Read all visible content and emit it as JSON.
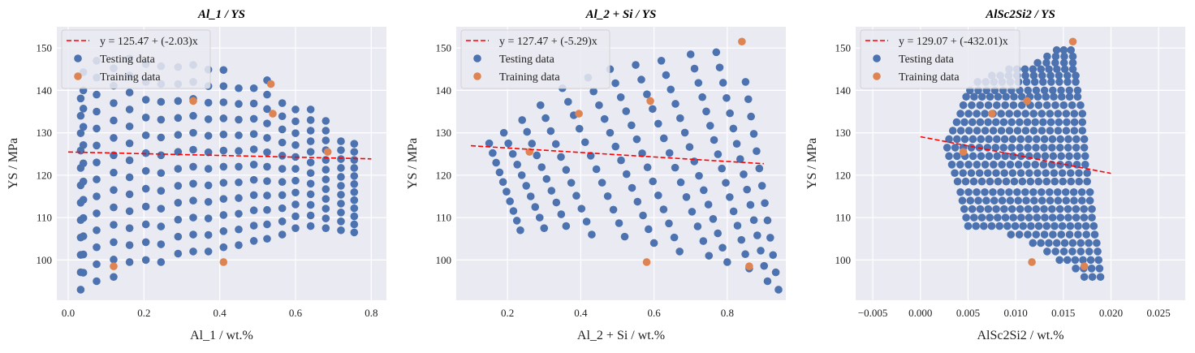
{
  "chart_data": [
    {
      "type": "scatter",
      "title": "Al_1 / YS",
      "xlabel": "Al_1 / wt.%",
      "ylabel": "YS / MPa",
      "xlim": [
        -0.03,
        0.84
      ],
      "ylim": [
        90.5,
        155
      ],
      "xticks": [
        "0.0",
        "0.2",
        "0.4",
        "0.6",
        "0.8"
      ],
      "xtick_values": [
        0,
        0.2,
        0.4,
        0.6,
        0.8
      ],
      "yticks": [
        "100",
        "110",
        "120",
        "130",
        "140",
        "150"
      ],
      "ytick_values": [
        100,
        110,
        120,
        130,
        140,
        150
      ],
      "grid": true,
      "legend_position": "top-left",
      "fit": {
        "label": "y = 125.47 + (-2.03)x",
        "intercept": 125.47,
        "slope": -2.03,
        "x_range": [
          0,
          0.8
        ],
        "color": "#ff0000"
      },
      "series": [
        {
          "name": "Testing data",
          "color": "#4c72b0",
          "columns": [
            {
              "x": 0.033,
              "y_min": 93,
              "y_max": 142,
              "step": 4.1
            },
            {
              "x": 0.04,
              "y_min": 97,
              "y_max": 148.5,
              "step": 4.3
            },
            {
              "x": 0.075,
              "y_min": 95,
              "y_max": 148,
              "step": 4.0
            },
            {
              "x": 0.12,
              "y_min": 96,
              "y_max": 149,
              "step": 4.1
            },
            {
              "x": 0.162,
              "y_min": 99.5,
              "y_max": 148,
              "step": 4.0
            },
            {
              "x": 0.205,
              "y_min": 100,
              "y_max": 147,
              "step": 4.2
            },
            {
              "x": 0.245,
              "y_min": 99.5,
              "y_max": 146,
              "step": 4.2
            },
            {
              "x": 0.29,
              "y_min": 101.5,
              "y_max": 146,
              "step": 4.0
            },
            {
              "x": 0.33,
              "y_min": 102,
              "y_max": 146,
              "step": 4.0
            },
            {
              "x": 0.37,
              "y_min": 102,
              "y_max": 145,
              "step": 3.9
            },
            {
              "x": 0.41,
              "y_min": 103,
              "y_max": 145,
              "step": 3.8
            },
            {
              "x": 0.45,
              "y_min": 103.5,
              "y_max": 144,
              "step": 3.7
            },
            {
              "x": 0.49,
              "y_min": 104.5,
              "y_max": 144,
              "step": 3.6
            },
            {
              "x": 0.525,
              "y_min": 105,
              "y_max": 142.5,
              "step": 3.4
            },
            {
              "x": 0.565,
              "y_min": 106,
              "y_max": 140,
              "step": 3.1
            },
            {
              "x": 0.6,
              "y_min": 107.5,
              "y_max": 138,
              "step": 2.8
            },
            {
              "x": 0.64,
              "y_min": 108,
              "y_max": 135.5,
              "step": 2.5
            },
            {
              "x": 0.68,
              "y_min": 107.5,
              "y_max": 133,
              "step": 2.3
            },
            {
              "x": 0.72,
              "y_min": 107,
              "y_max": 130,
              "step": 2.1
            },
            {
              "x": 0.755,
              "y_min": 106.5,
              "y_max": 127.5,
              "step": 1.9
            }
          ]
        },
        {
          "name": "Training data",
          "color": "#dd8452",
          "points": [
            {
              "x": 0.12,
              "y": 98.5
            },
            {
              "x": 0.33,
              "y": 137.5
            },
            {
              "x": 0.41,
              "y": 99.5
            },
            {
              "x": 0.535,
              "y": 141.5
            },
            {
              "x": 0.54,
              "y": 134.5
            },
            {
              "x": 0.685,
              "y": 125.5
            }
          ]
        }
      ]
    },
    {
      "type": "scatter",
      "title": "Al_2 + Si / YS",
      "xlabel": "Al_2 + Si / wt.%",
      "ylabel": "YS / MPa",
      "xlim": [
        0.06,
        0.96
      ],
      "ylim": [
        90.5,
        155
      ],
      "xticks": [
        "0.2",
        "0.4",
        "0.6",
        "0.8"
      ],
      "xtick_values": [
        0.2,
        0.4,
        0.6,
        0.8
      ],
      "yticks": [
        "100",
        "110",
        "120",
        "130",
        "140",
        "150"
      ],
      "ytick_values": [
        100,
        110,
        120,
        130,
        140,
        150
      ],
      "grid": true,
      "legend_position": "top-left",
      "fit": {
        "label": "y = 127.47 + (-5.29)x",
        "intercept": 127.47,
        "slope": -5.29,
        "x_range": [
          0.1,
          0.9
        ],
        "color": "#ff0000"
      },
      "series": [
        {
          "name": "Testing data",
          "color": "#4c72b0",
          "chains": [
            {
              "x0": 0.15,
              "y0": 127.5,
              "x1": 0.235,
              "y1": 107,
              "n": 10
            },
            {
              "x0": 0.19,
              "y0": 130,
              "x1": 0.3,
              "y1": 107.5,
              "n": 10
            },
            {
              "x0": 0.24,
              "y0": 133,
              "x1": 0.36,
              "y1": 108,
              "n": 10
            },
            {
              "x0": 0.29,
              "y0": 136.5,
              "x1": 0.43,
              "y1": 106,
              "n": 11
            },
            {
              "x0": 0.35,
              "y0": 140.5,
              "x1": 0.52,
              "y1": 105.5,
              "n": 12
            },
            {
              "x0": 0.42,
              "y0": 143,
              "x1": 0.6,
              "y1": 104,
              "n": 13
            },
            {
              "x0": 0.48,
              "y0": 145,
              "x1": 0.67,
              "y1": 102,
              "n": 14
            },
            {
              "x0": 0.55,
              "y0": 146,
              "x1": 0.75,
              "y1": 101,
              "n": 14
            },
            {
              "x0": 0.62,
              "y0": 147,
              "x1": 0.8,
              "y1": 99.5,
              "n": 15
            },
            {
              "x0": 0.7,
              "y0": 148.5,
              "x1": 0.86,
              "y1": 98,
              "n": 16
            },
            {
              "x0": 0.77,
              "y0": 149,
              "x1": 0.91,
              "y1": 95,
              "n": 16
            },
            {
              "x0": 0.85,
              "y0": 142,
              "x1": 0.94,
              "y1": 93,
              "n": 13
            }
          ]
        },
        {
          "name": "Training data",
          "color": "#dd8452",
          "points": [
            {
              "x": 0.26,
              "y": 125.5
            },
            {
              "x": 0.395,
              "y": 134.5
            },
            {
              "x": 0.58,
              "y": 99.5
            },
            {
              "x": 0.59,
              "y": 137.5
            },
            {
              "x": 0.84,
              "y": 151.5
            },
            {
              "x": 0.86,
              "y": 98.5
            }
          ]
        }
      ]
    },
    {
      "type": "scatter",
      "title": "AlSc2Si2 / YS",
      "xlabel": "AlSc2Si2 / wt.%",
      "ylabel": "YS / MPa",
      "xlim": [
        -0.0068,
        0.0278
      ],
      "ylim": [
        90.5,
        155
      ],
      "xticks": [
        "−0.005",
        "0.000",
        "0.005",
        "0.010",
        "0.015",
        "0.020",
        "0.025"
      ],
      "xtick_values": [
        -0.005,
        0,
        0.005,
        0.01,
        0.015,
        0.02,
        0.025
      ],
      "yticks": [
        "100",
        "110",
        "120",
        "130",
        "140",
        "150"
      ],
      "ytick_values": [
        100,
        110,
        120,
        130,
        140,
        150
      ],
      "grid": true,
      "legend_position": "top-left",
      "fit": {
        "label": "y = 129.07 + (-432.01)x",
        "intercept": 129.07,
        "slope": -432.01,
        "x_range": [
          0,
          0.02
        ],
        "color": "#ff0000"
      },
      "series": [
        {
          "name": "Testing data",
          "color": "#4c72b0",
          "rows": [
            {
              "y": 149.5,
              "x_min": 0.0143,
              "x_max": 0.0158
            },
            {
              "y": 148,
              "x_min": 0.0133,
              "x_max": 0.016
            },
            {
              "y": 146.5,
              "x_min": 0.0123,
              "x_max": 0.016
            },
            {
              "y": 145,
              "x_min": 0.0093,
              "x_max": 0.016
            },
            {
              "y": 143.5,
              "x_min": 0.0075,
              "x_max": 0.0163
            },
            {
              "y": 142,
              "x_min": 0.006,
              "x_max": 0.0163
            },
            {
              "y": 140,
              "x_min": 0.0052,
              "x_max": 0.0165
            },
            {
              "y": 138.5,
              "x_min": 0.0048,
              "x_max": 0.0165
            },
            {
              "y": 136.5,
              "x_min": 0.0045,
              "x_max": 0.0168
            },
            {
              "y": 134.5,
              "x_min": 0.0042,
              "x_max": 0.017
            },
            {
              "y": 132.5,
              "x_min": 0.0038,
              "x_max": 0.017
            },
            {
              "y": 130.5,
              "x_min": 0.0034,
              "x_max": 0.017
            },
            {
              "y": 128.5,
              "x_min": 0.003,
              "x_max": 0.0172
            },
            {
              "y": 126.5,
              "x_min": 0.0028,
              "x_max": 0.0172
            },
            {
              "y": 124.5,
              "x_min": 0.003,
              "x_max": 0.0173
            },
            {
              "y": 122.5,
              "x_min": 0.0033,
              "x_max": 0.0173
            },
            {
              "y": 120.5,
              "x_min": 0.0036,
              "x_max": 0.0175
            },
            {
              "y": 118.5,
              "x_min": 0.0039,
              "x_max": 0.0175
            },
            {
              "y": 116,
              "x_min": 0.0042,
              "x_max": 0.0178
            },
            {
              "y": 114,
              "x_min": 0.0044,
              "x_max": 0.0178
            },
            {
              "y": 112,
              "x_min": 0.0046,
              "x_max": 0.018
            },
            {
              "y": 110,
              "x_min": 0.0048,
              "x_max": 0.018
            },
            {
              "y": 108,
              "x_min": 0.005,
              "x_max": 0.0182
            },
            {
              "y": 106,
              "x_min": 0.0095,
              "x_max": 0.0183
            },
            {
              "y": 104,
              "x_min": 0.0118,
              "x_max": 0.0185
            },
            {
              "y": 102,
              "x_min": 0.0133,
              "x_max": 0.0186
            },
            {
              "y": 100,
              "x_min": 0.0146,
              "x_max": 0.0187
            },
            {
              "y": 98,
              "x_min": 0.0163,
              "x_max": 0.0188
            },
            {
              "y": 96,
              "x_min": 0.0172,
              "x_max": 0.0189
            }
          ]
        },
        {
          "name": "Training data",
          "color": "#dd8452",
          "points": [
            {
              "x": 0.0045,
              "y": 125.5
            },
            {
              "x": 0.0075,
              "y": 134.5
            },
            {
              "x": 0.0112,
              "y": 137.5
            },
            {
              "x": 0.0117,
              "y": 99.5
            },
            {
              "x": 0.016,
              "y": 151.5
            },
            {
              "x": 0.0172,
              "y": 98.5
            }
          ]
        }
      ]
    }
  ]
}
